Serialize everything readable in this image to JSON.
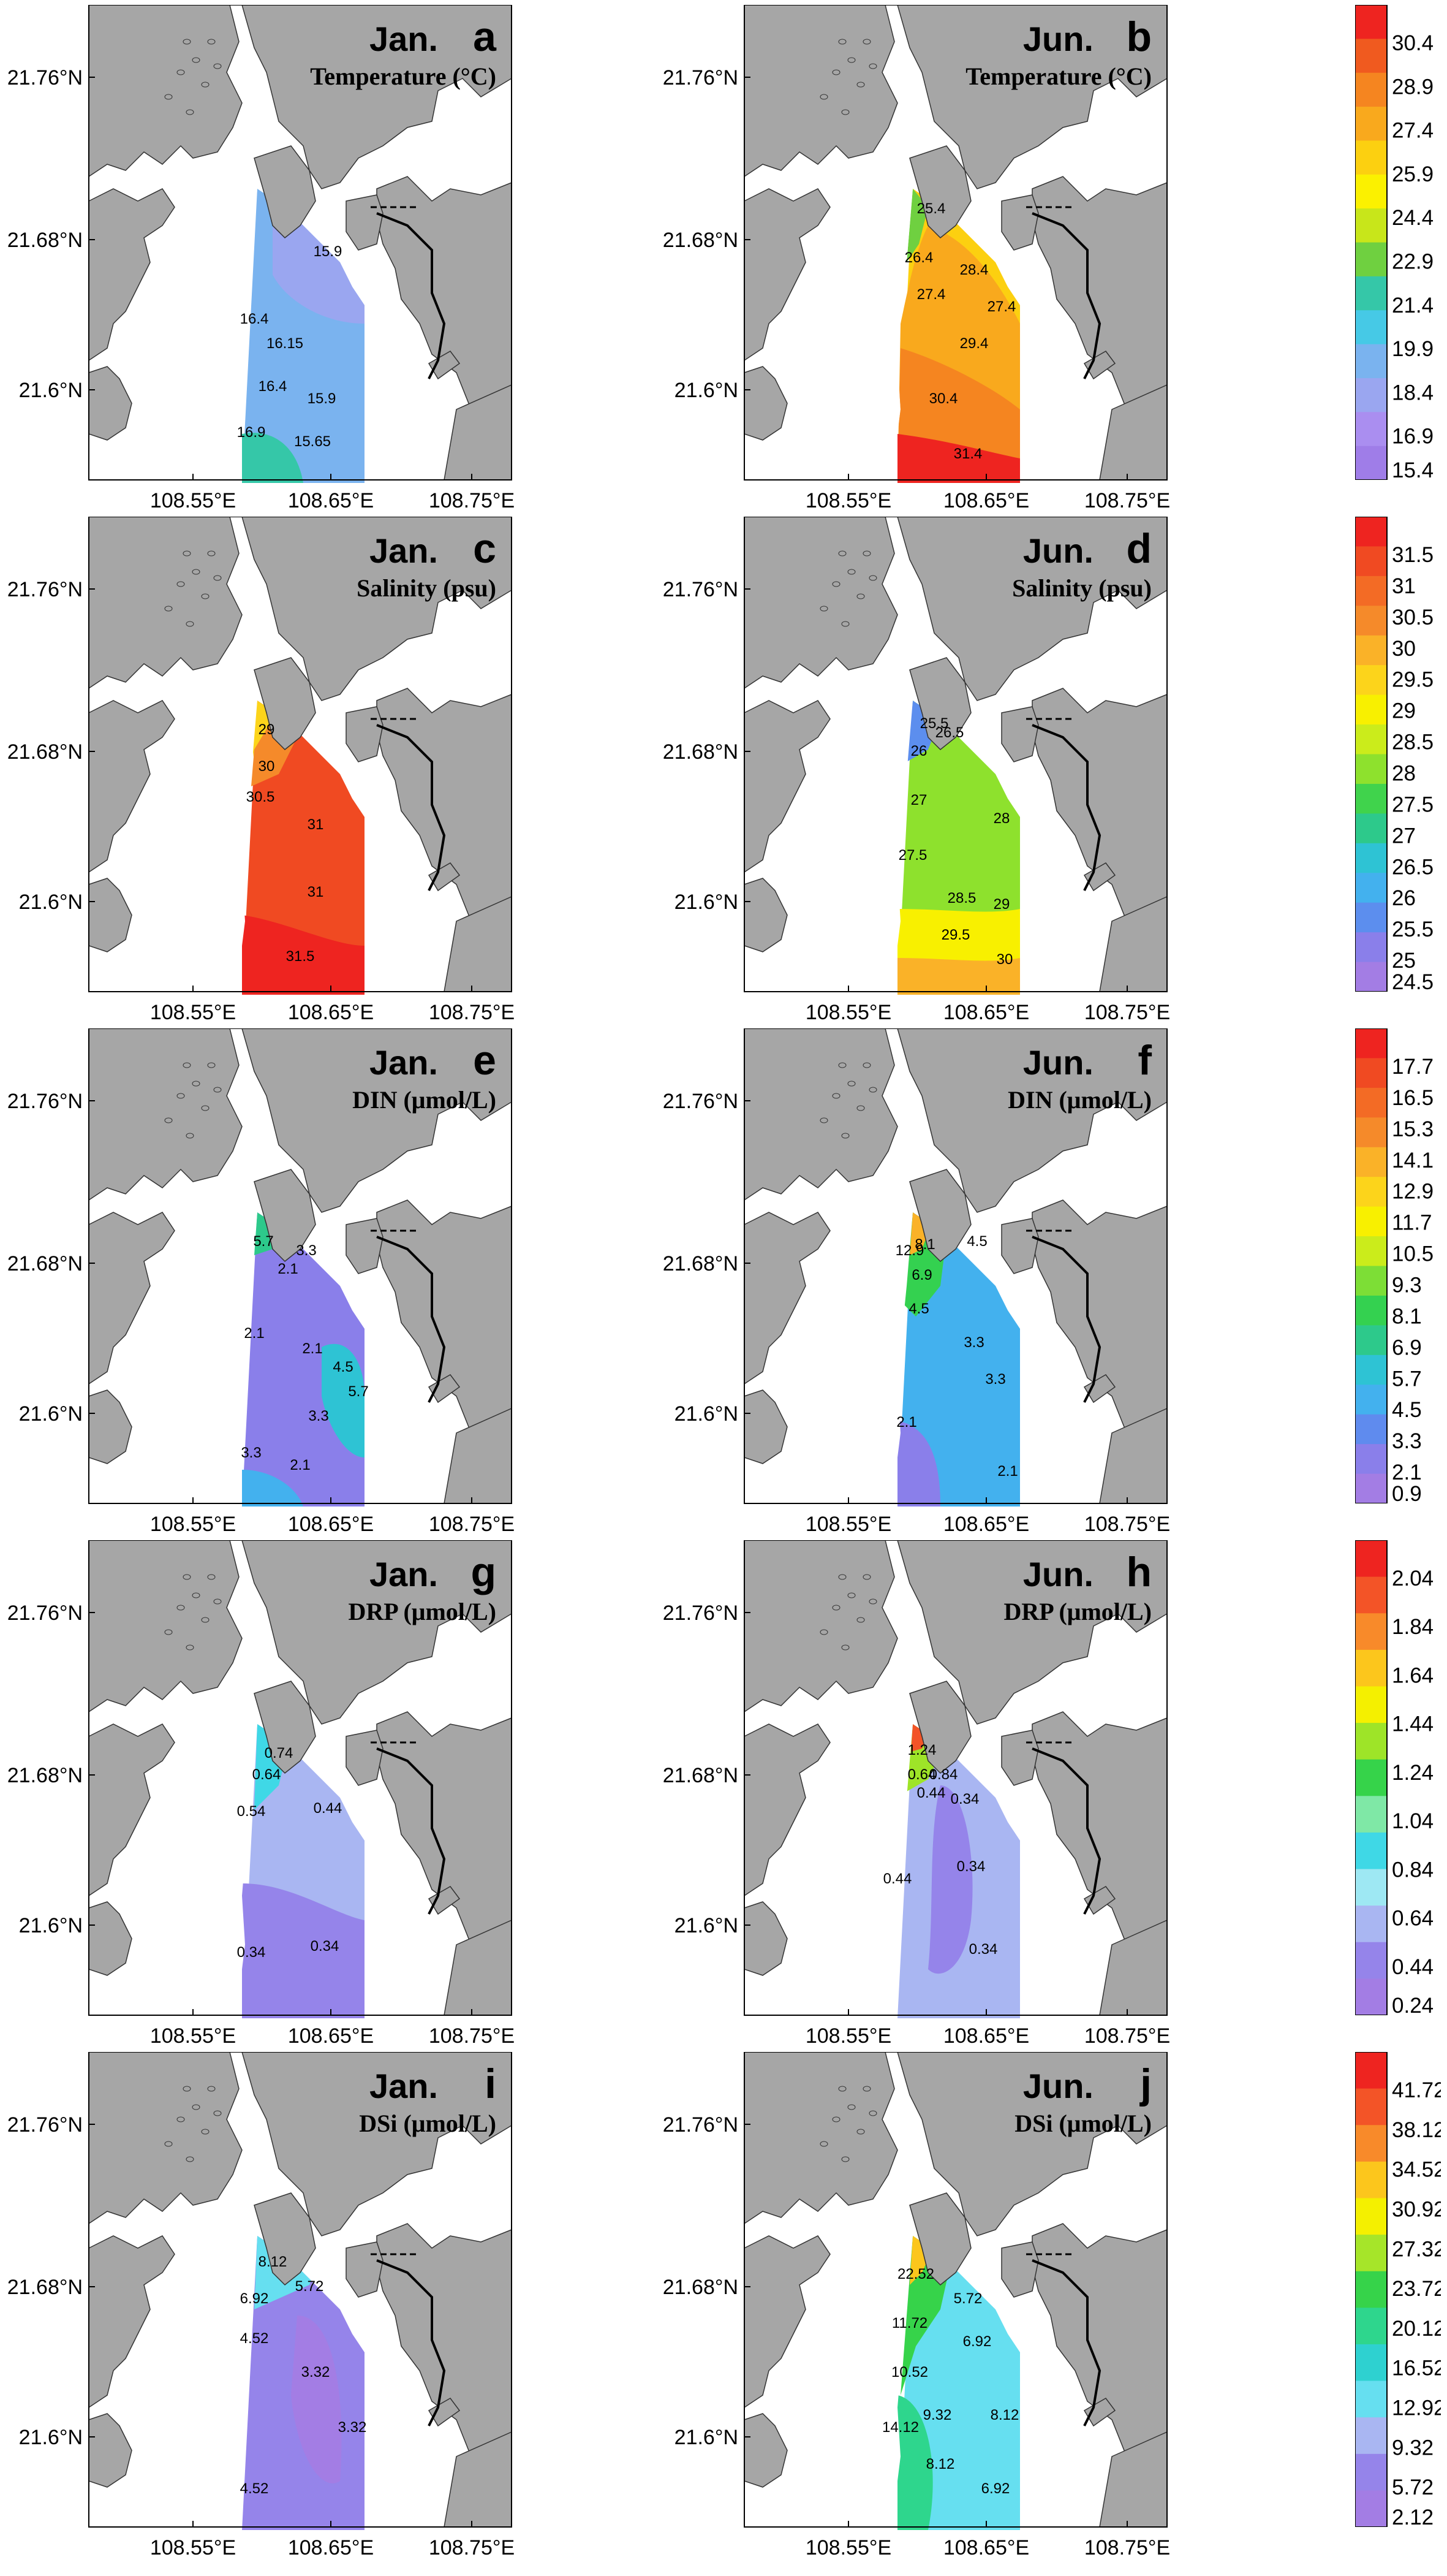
{
  "axes": {
    "y_ticks": [
      "21.76°N",
      "21.68°N",
      "21.6°N"
    ],
    "x_ticks": [
      "108.55°E",
      "108.65°E",
      "108.75°E"
    ]
  },
  "rows": [
    {
      "variable": "Temperature (°C)",
      "colorbar": [
        "30.4",
        "28.9",
        "27.4",
        "25.9",
        "24.4",
        "22.9",
        "21.4",
        "19.9",
        "18.4",
        "16.9",
        "15.4"
      ],
      "panels": [
        {
          "month": "Jan.",
          "letter": "a",
          "labels": [
            "15.9",
            "16.4",
            "16.15",
            "16.4",
            "15.9",
            "16.9",
            "15.65"
          ]
        },
        {
          "month": "Jun.",
          "letter": "b",
          "labels": [
            "25.4",
            "26.4",
            "27.4",
            "28.4",
            "27.4",
            "29.4",
            "30.4",
            "31.4"
          ]
        }
      ]
    },
    {
      "variable": "Salinity (psu)",
      "colorbar": [
        "31.5",
        "31",
        "30.5",
        "30",
        "29.5",
        "29",
        "28.5",
        "28",
        "27.5",
        "27",
        "26.5",
        "26",
        "25.5",
        "25",
        "24.5"
      ],
      "panels": [
        {
          "month": "Jan.",
          "letter": "c",
          "labels": [
            "29",
            "30",
            "30.5",
            "31",
            "31",
            "31.5"
          ]
        },
        {
          "month": "Jun.",
          "letter": "d",
          "labels": [
            "25.5",
            "26",
            "26.5",
            "27",
            "27.5",
            "28",
            "28.5",
            "29",
            "29.5",
            "30"
          ]
        }
      ]
    },
    {
      "variable": "DIN (μmol/L)",
      "colorbar": [
        "17.7",
        "16.5",
        "15.3",
        "14.1",
        "12.9",
        "11.7",
        "10.5",
        "9.3",
        "8.1",
        "6.9",
        "5.7",
        "4.5",
        "3.3",
        "2.1",
        "0.9"
      ],
      "panels": [
        {
          "month": "Jan.",
          "letter": "e",
          "labels": [
            "5.7",
            "3.3",
            "2.1",
            "2.1",
            "2.1",
            "4.5",
            "5.7",
            "3.3",
            "3.3",
            "2.1"
          ]
        },
        {
          "month": "Jun.",
          "letter": "f",
          "labels": [
            "12.9",
            "8.1",
            "6.9",
            "4.5",
            "4.5",
            "3.3",
            "3.3",
            "2.1",
            "2.1"
          ]
        }
      ]
    },
    {
      "variable": "DRP (μmol/L)",
      "colorbar": [
        "2.04",
        "1.84",
        "1.64",
        "1.44",
        "1.24",
        "1.04",
        "0.84",
        "0.64",
        "0.44",
        "0.24"
      ],
      "panels": [
        {
          "month": "Jan.",
          "letter": "g",
          "labels": [
            "0.74",
            "0.64",
            "0.54",
            "0.44",
            "0.34",
            "0.34"
          ]
        },
        {
          "month": "Jun.",
          "letter": "h",
          "labels": [
            "1.24",
            "0.64",
            "0.84",
            "0.44",
            "0.34",
            "0.34",
            "0.44",
            "0.34"
          ]
        }
      ]
    },
    {
      "variable": "DSi (μmol/L)",
      "colorbar": [
        "41.72",
        "38.12",
        "34.52",
        "30.92",
        "27.32",
        "23.72",
        "20.12",
        "16.52",
        "12.92",
        "9.32",
        "5.72",
        "2.12"
      ],
      "panels": [
        {
          "month": "Jan.",
          "letter": "i",
          "labels": [
            "8.12",
            "6.92",
            "5.72",
            "4.52",
            "3.32",
            "3.32",
            "4.52"
          ]
        },
        {
          "month": "Jun.",
          "letter": "j",
          "labels": [
            "22.52",
            "11.72",
            "5.72",
            "6.92",
            "10.52",
            "14.12",
            "9.32",
            "8.12",
            "8.12",
            "6.92"
          ]
        }
      ]
    }
  ]
}
